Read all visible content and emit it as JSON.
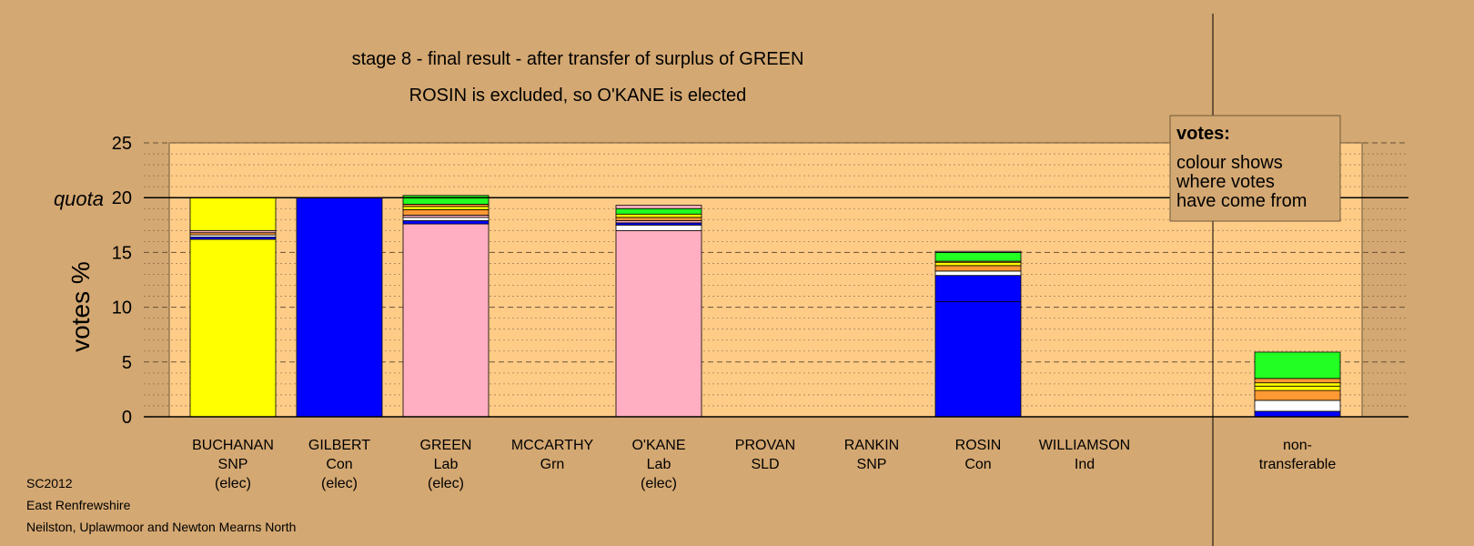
{
  "chart_data": {
    "type": "bar",
    "stacked": true,
    "title": "stage 8 - final result - after transfer of surplus of GREEN",
    "subtitle": "ROSIN is excluded, so O'KANE is elected",
    "ylabel": "votes %",
    "quota_label": "quota",
    "quota": 20,
    "ylim": [
      0,
      25
    ],
    "yticks": [
      "0",
      "5",
      "10",
      "15",
      "20",
      "25"
    ],
    "grid": true,
    "legend": {
      "title": "votes:",
      "lines": [
        "colour shows",
        "where votes",
        "have come from"
      ],
      "placement": "top-right"
    },
    "colors": {
      "snp": "#ffff00",
      "con": "#0000ff",
      "lab": "#ffafc1",
      "ind": "#ffffff",
      "sld": "#ff9933",
      "grn": "#22ff22",
      "plot_bg": "#ffcc88",
      "page_bg": "#d4a872"
    },
    "candidates": [
      {
        "name": "BUCHANAN",
        "party": "SNP",
        "status": "(elec)",
        "segments": [
          {
            "party": "snp",
            "value": 16.2
          },
          {
            "party": "con",
            "value": 0.2
          },
          {
            "party": "ind",
            "value": 0.2
          },
          {
            "party": "sld",
            "value": 0.2
          },
          {
            "party": "lab",
            "value": 0.2
          },
          {
            "party": "snp",
            "value": 3.0
          }
        ]
      },
      {
        "name": "GILBERT",
        "party": "Con",
        "status": "(elec)",
        "segments": [
          {
            "party": "con",
            "value": 20.0
          }
        ]
      },
      {
        "name": "GREEN",
        "party": "Lab",
        "status": "(elec)",
        "segments": [
          {
            "party": "lab",
            "value": 17.6
          },
          {
            "party": "con",
            "value": 0.3
          },
          {
            "party": "ind",
            "value": 0.3
          },
          {
            "party": "lab",
            "value": 0.2
          },
          {
            "party": "sld",
            "value": 0.5
          },
          {
            "party": "snp",
            "value": 0.3
          },
          {
            "party": "sld",
            "value": 0.2
          },
          {
            "party": "grn",
            "value": 0.8
          }
        ]
      },
      {
        "name": "MCCARTHY",
        "party": "Grn",
        "status": "",
        "segments": []
      },
      {
        "name": "O'KANE",
        "party": "Lab",
        "status": "(elec)",
        "segments": [
          {
            "party": "lab",
            "value": 17.0
          },
          {
            "party": "ind",
            "value": 0.5
          },
          {
            "party": "con",
            "value": 0.2
          },
          {
            "party": "lab",
            "value": 0.2
          },
          {
            "party": "sld",
            "value": 0.3
          },
          {
            "party": "snp",
            "value": 0.3
          },
          {
            "party": "grn",
            "value": 0.5
          },
          {
            "party": "lab",
            "value": 0.3
          }
        ]
      },
      {
        "name": "PROVAN",
        "party": "SLD",
        "status": "",
        "segments": []
      },
      {
        "name": "RANKIN",
        "party": "SNP",
        "status": "",
        "segments": []
      },
      {
        "name": "ROSIN",
        "party": "Con",
        "status": "",
        "segments": [
          {
            "party": "con",
            "value": 10.5
          },
          {
            "party": "con",
            "value": 2.4
          },
          {
            "party": "ind",
            "value": 0.4
          },
          {
            "party": "sld",
            "value": 0.5
          },
          {
            "party": "snp",
            "value": 0.3
          },
          {
            "party": "sld",
            "value": 0.1
          },
          {
            "party": "grn",
            "value": 0.8
          },
          {
            "party": "lab",
            "value": 0.1
          }
        ]
      },
      {
        "name": "WILLIAMSON",
        "party": "Ind",
        "status": "",
        "segments": []
      }
    ],
    "non_transferable": {
      "label_line1": "non-",
      "label_line2": "transferable",
      "segments": [
        {
          "party": "con",
          "value": 0.5
        },
        {
          "party": "ind",
          "value": 1.0
        },
        {
          "party": "sld",
          "value": 0.9
        },
        {
          "party": "snp",
          "value": 0.4
        },
        {
          "party": "snp",
          "value": 0.3
        },
        {
          "party": "sld",
          "value": 0.4
        },
        {
          "party": "grn",
          "value": 2.4
        }
      ]
    }
  },
  "footer": {
    "line1": "SC2012",
    "line2": "East Renfrewshire",
    "line3": "Neilston, Uplawmoor and Newton Mearns North"
  }
}
